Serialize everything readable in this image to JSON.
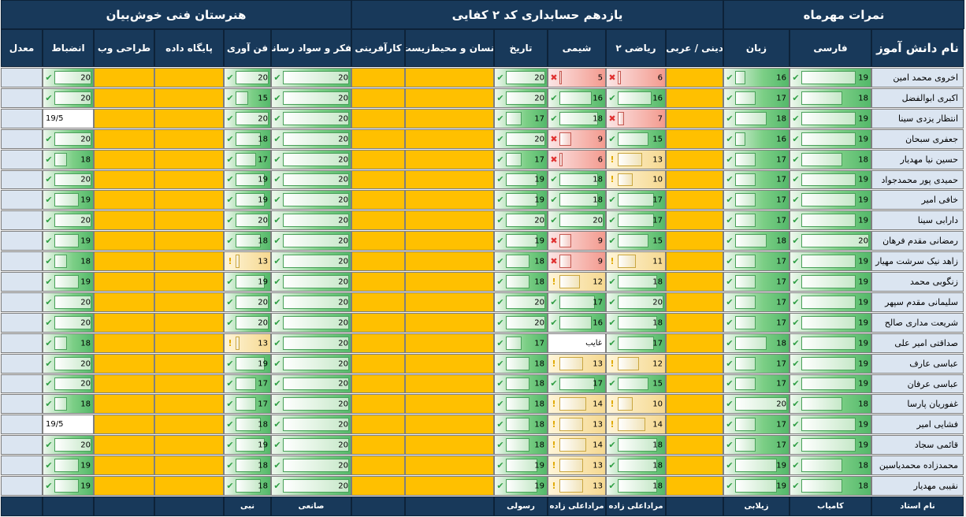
{
  "banners": {
    "grades": "نمرات مهرماه",
    "class": "یازدهم حسابداری کد ۲ کفایی",
    "school": "هنرستان فنی خوش‌بیان"
  },
  "columns": [
    {
      "key": "name",
      "label": "نام دانش آموز",
      "teacher": "نام استاد"
    },
    {
      "key": "farsi",
      "label": "فارسی",
      "teacher": "کامیاب"
    },
    {
      "key": "zaban",
      "label": "زبان",
      "teacher": "زیلابی"
    },
    {
      "key": "dini",
      "label": "دینی / عربی",
      "teacher": ""
    },
    {
      "key": "riazi",
      "label": "ریاضی ۲",
      "teacher": "مراداعلی زاده"
    },
    {
      "key": "shimi",
      "label": "شیمی",
      "teacher": "مراداعلی زاده"
    },
    {
      "key": "tarikh",
      "label": "تاریخ",
      "teacher": "رسولی"
    },
    {
      "key": "ensan",
      "label": "انسان و محیط‌زیست",
      "teacher": ""
    },
    {
      "key": "karafarini",
      "label": "کارآفرینی",
      "teacher": ""
    },
    {
      "key": "tafakor",
      "label": "تفکر و سواد رسانه",
      "teacher": "صانعی"
    },
    {
      "key": "fanavari",
      "label": "فن آوری",
      "teacher": "نبی"
    },
    {
      "key": "database",
      "label": "پایگاه داده",
      "teacher": ""
    },
    {
      "key": "web",
      "label": "طراحی وب",
      "teacher": ""
    },
    {
      "key": "enzebat",
      "label": "انضباط",
      "teacher": ""
    },
    {
      "key": "moadel",
      "label": "معدل",
      "teacher": ""
    }
  ],
  "students": [
    {
      "name": "اخروی   محمد امین",
      "farsi": "19",
      "zaban": "16",
      "riazi": "6",
      "shimi": "5",
      "tarikh": "20",
      "tafakor": "20",
      "fanavari": "20",
      "enzebat": "20"
    },
    {
      "name": "اکبری      ابوالفضل",
      "farsi": "18",
      "zaban": "17",
      "riazi": "16",
      "shimi": "16",
      "tarikh": "20",
      "tafakor": "20",
      "fanavari": "15",
      "enzebat": "20"
    },
    {
      "name": "انتظار یزدی    سینا",
      "farsi": "19",
      "zaban": "18",
      "riazi": "7",
      "shimi": "18",
      "tarikh": "17",
      "tafakor": "20",
      "fanavari": "20",
      "enzebat": "19/5"
    },
    {
      "name": "جعفری        سبحان",
      "farsi": "19",
      "zaban": "16",
      "riazi": "15",
      "shimi": "9",
      "tarikh": "20",
      "tafakor": "20",
      "fanavari": "18",
      "enzebat": "20"
    },
    {
      "name": "حسین نیا    مهدیار",
      "farsi": "18",
      "zaban": "17",
      "riazi": "13",
      "shimi": "6",
      "tarikh": "17",
      "tafakor": "20",
      "fanavari": "17",
      "enzebat": "18"
    },
    {
      "name": "حمیدی پور محمدجواد",
      "farsi": "19",
      "zaban": "17",
      "riazi": "10",
      "shimi": "18",
      "tarikh": "19",
      "tafakor": "20",
      "fanavari": "19",
      "enzebat": "20"
    },
    {
      "name": "خافی         امیر",
      "farsi": "19",
      "zaban": "17",
      "riazi": "17",
      "shimi": "18",
      "tarikh": "19",
      "tafakor": "20",
      "fanavari": "19",
      "enzebat": "19"
    },
    {
      "name": "دارابی        سینا",
      "farsi": "19",
      "zaban": "17",
      "riazi": "17",
      "shimi": "20",
      "tarikh": "20",
      "tafakor": "20",
      "fanavari": "20",
      "enzebat": "20"
    },
    {
      "name": "رمضانی مقدم  فرهان",
      "farsi": "20",
      "zaban": "18",
      "riazi": "15",
      "shimi": "9",
      "tarikh": "19",
      "tafakor": "20",
      "fanavari": "18",
      "enzebat": "19"
    },
    {
      "name": "زاهد نیک سرشت  مهیار",
      "farsi": "19",
      "zaban": "17",
      "riazi": "11",
      "shimi": "9",
      "tarikh": "18",
      "tafakor": "20",
      "fanavari": "13",
      "enzebat": "18"
    },
    {
      "name": "زنگوبی       محمد",
      "farsi": "19",
      "zaban": "17",
      "riazi": "18",
      "shimi": "12",
      "tarikh": "18",
      "tafakor": "20",
      "fanavari": "19",
      "enzebat": "19"
    },
    {
      "name": "سلیمانی مقدم  سپهر",
      "farsi": "19",
      "zaban": "17",
      "riazi": "20",
      "shimi": "17",
      "tarikh": "20",
      "tafakor": "20",
      "fanavari": "20",
      "enzebat": "20"
    },
    {
      "name": "شریعت مداری  صالح",
      "farsi": "19",
      "zaban": "17",
      "riazi": "18",
      "shimi": "16",
      "tarikh": "20",
      "tafakor": "20",
      "fanavari": "20",
      "enzebat": "20"
    },
    {
      "name": "صداقتی    امیر علی",
      "farsi": "19",
      "zaban": "18",
      "riazi": "17",
      "shimi": "غایب",
      "tarikh": "17",
      "tafakor": "20",
      "fanavari": "13",
      "enzebat": "18"
    },
    {
      "name": "عباسی        عارف",
      "farsi": "19",
      "zaban": "17",
      "riazi": "12",
      "shimi": "13",
      "tarikh": "18",
      "tafakor": "20",
      "fanavari": "19",
      "enzebat": "20"
    },
    {
      "name": "عباسی       عرفان",
      "farsi": "19",
      "zaban": "17",
      "riazi": "15",
      "shimi": "17",
      "tarikh": "18",
      "tafakor": "20",
      "fanavari": "17",
      "enzebat": "20"
    },
    {
      "name": "غفوریان      پارسا",
      "farsi": "18",
      "zaban": "20",
      "riazi": "10",
      "shimi": "14",
      "tarikh": "18",
      "tafakor": "20",
      "fanavari": "17",
      "enzebat": "18"
    },
    {
      "name": "فشایی       امیر",
      "farsi": "19",
      "zaban": "17",
      "riazi": "14",
      "shimi": "13",
      "tarikh": "18",
      "tafakor": "20",
      "fanavari": "18",
      "enzebat": "19/5"
    },
    {
      "name": "قائمی       سجاد",
      "farsi": "19",
      "zaban": "17",
      "riazi": "18",
      "shimi": "14",
      "tarikh": "18",
      "tafakor": "20",
      "fanavari": "19",
      "enzebat": "20"
    },
    {
      "name": "محمدزاده  محمدیاسین",
      "farsi": "18",
      "zaban": "19",
      "riazi": "18",
      "shimi": "13",
      "tarikh": "19",
      "tafakor": "20",
      "fanavari": "18",
      "enzebat": "19"
    },
    {
      "name": "نقیبی       مهدیار",
      "farsi": "18",
      "zaban": "19",
      "riazi": "18",
      "shimi": "13",
      "tarikh": "19",
      "tafakor": "20",
      "fanavari": "18",
      "enzebat": "19"
    }
  ],
  "status_colors": {
    "ok": "#54b86a",
    "warning": "#f5d890",
    "fail": "#f39a8e",
    "empty": "#ffc000",
    "header": "#18395a"
  },
  "status_icons": {
    "ok": "check-icon",
    "warning": "exclamation-icon",
    "fail": "cross-icon"
  }
}
